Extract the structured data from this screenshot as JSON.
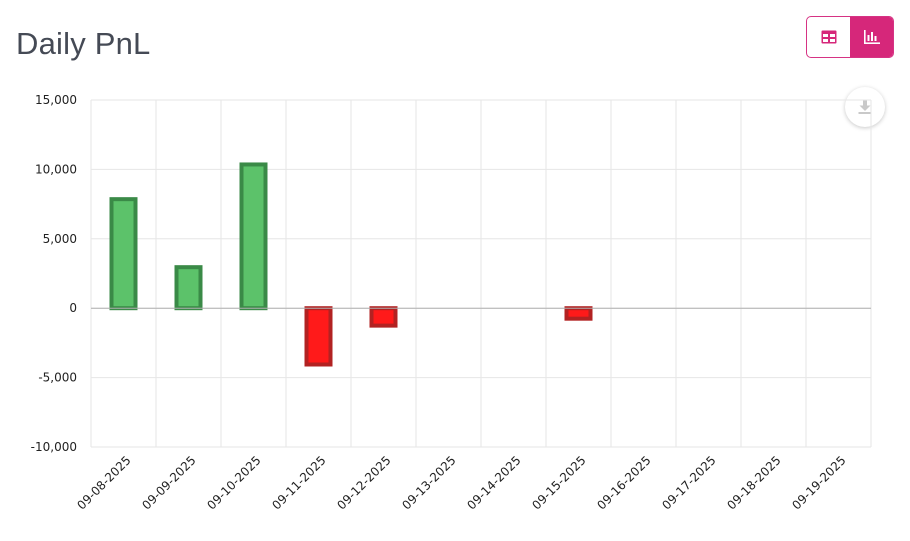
{
  "header": {
    "title": "Daily PnL"
  },
  "view_toggle": {
    "options": [
      {
        "name": "table-view",
        "icon": "table-icon",
        "active": false
      },
      {
        "name": "chart-view",
        "icon": "bar-chart-icon",
        "active": true
      }
    ]
  },
  "download": {
    "icon": "download-icon"
  },
  "colors": {
    "accent": "#d6277a",
    "positive_fill": "#5cc26a",
    "positive_stroke": "#3a8a47",
    "negative_fill": "#ff1a1a",
    "negative_stroke": "#b22222"
  },
  "chart_data": {
    "type": "bar",
    "title": "",
    "xlabel": "",
    "ylabel": "",
    "categories": [
      "09-08-2025",
      "09-09-2025",
      "09-10-2025",
      "09-11-2025",
      "09-12-2025",
      "09-13-2025",
      "09-14-2025",
      "09-15-2025",
      "09-16-2025",
      "09-17-2025",
      "09-18-2025",
      "09-19-2025"
    ],
    "values": [
      8000,
      3100,
      10500,
      -4200,
      -1400,
      0,
      0,
      -900,
      0,
      0,
      0,
      0
    ],
    "ylim": [
      -10000,
      15000
    ],
    "yticks": [
      15000,
      10000,
      5000,
      0,
      -5000,
      -10000
    ],
    "ytick_labels": [
      "15,000",
      "10,000",
      "5,000",
      "0",
      "-5,000",
      "-10,000"
    ],
    "grid": true,
    "legend": "none"
  }
}
